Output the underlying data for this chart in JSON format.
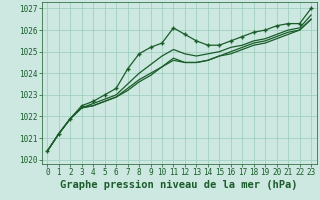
{
  "title": "Graphe pression niveau de la mer (hPa)",
  "xlim": [
    -0.5,
    23.5
  ],
  "ylim": [
    1019.8,
    1027.3
  ],
  "yticks": [
    1020,
    1021,
    1022,
    1023,
    1024,
    1025,
    1026,
    1027
  ],
  "xticks": [
    0,
    1,
    2,
    3,
    4,
    5,
    6,
    7,
    8,
    9,
    10,
    11,
    12,
    13,
    14,
    15,
    16,
    17,
    18,
    19,
    20,
    21,
    22,
    23
  ],
  "bg_color": "#cce8e0",
  "grid_color": "#99ccbb",
  "line_color": "#1a5c2a",
  "series": [
    [
      1020.4,
      1021.2,
      1021.9,
      1022.5,
      1022.7,
      1023.0,
      1023.3,
      1024.2,
      1024.9,
      1025.2,
      1025.4,
      1026.1,
      1025.8,
      1025.5,
      1025.3,
      1025.3,
      1025.5,
      1025.7,
      1025.9,
      1026.0,
      1026.2,
      1026.3,
      1026.3,
      1027.0
    ],
    [
      1020.4,
      1021.2,
      1021.9,
      1022.4,
      1022.6,
      1022.8,
      1023.0,
      1023.5,
      1024.0,
      1024.4,
      1024.8,
      1025.1,
      1024.9,
      1024.8,
      1024.9,
      1025.0,
      1025.2,
      1025.3,
      1025.5,
      1025.6,
      1025.8,
      1026.0,
      1026.1,
      1026.7
    ],
    [
      1020.4,
      1021.2,
      1021.9,
      1022.4,
      1022.5,
      1022.7,
      1022.9,
      1023.3,
      1023.7,
      1024.0,
      1024.3,
      1024.6,
      1024.5,
      1024.5,
      1024.6,
      1024.8,
      1025.0,
      1025.2,
      1025.4,
      1025.5,
      1025.7,
      1025.9,
      1026.0,
      1026.5
    ],
    [
      1020.4,
      1021.2,
      1021.9,
      1022.4,
      1022.5,
      1022.7,
      1022.9,
      1023.2,
      1023.6,
      1023.9,
      1024.3,
      1024.7,
      1024.5,
      1024.5,
      1024.6,
      1024.8,
      1024.9,
      1025.1,
      1025.3,
      1025.4,
      1025.6,
      1025.8,
      1026.0,
      1026.5
    ]
  ],
  "marker": "+",
  "markersize": 3.5,
  "markeredgewidth": 1.0,
  "linewidth": 0.9,
  "title_fontsize": 7.5,
  "tick_fontsize": 5.5,
  "title_color": "#1a5c2a",
  "tick_color": "#1a5c2a"
}
